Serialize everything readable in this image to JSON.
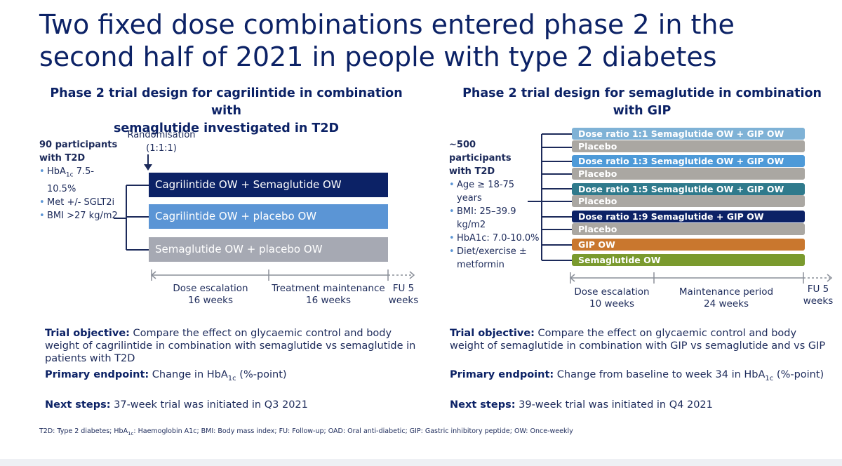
{
  "title": "Two fixed dose combinations entered phase 2 in the second half of 2021 in people with type 2 diabetes",
  "left": {
    "heading_line1": "Phase 2 trial design for cagrilintide in combination with",
    "heading_line2": "semaglutide investigated in T2D",
    "participants_line1": "90 participants",
    "participants_line2": "with T2D",
    "criteria": {
      "hba1c_prefix": "HbA",
      "hba1c_sub": "1c",
      "hba1c_value": " 7.5-",
      "hba1c_value2": "10.5%",
      "met": "Met +/- SGLT2i",
      "bmi": "BMI >27 kg/m2"
    },
    "randomisation_line1": "Randomisation",
    "randomisation_line2": "(1:1:1)",
    "arms": [
      {
        "label": "Cagrilintide OW + Semaglutide OW",
        "color": "#0c2266"
      },
      {
        "label": "Cagrilintide OW + placebo OW",
        "color": "#5b95d5"
      },
      {
        "label": "Semaglutide OW + placebo OW",
        "color": "#a6a9b3"
      }
    ],
    "timeline": {
      "dose_line1": "Dose escalation",
      "dose_line2": "16 weeks",
      "maint_line1": "Treatment maintenance",
      "maint_line2": "16 weeks",
      "fu_line1": "FU 5",
      "fu_line2": "weeks"
    },
    "objective_label": "Trial objective:",
    "objective_text": " Compare the effect on glycaemic control and body weight of cagrilintide in combination with semaglutide vs semaglutide in patients with T2D",
    "endpoint_label": "Primary endpoint:",
    "endpoint_text": " Change in HbA",
    "endpoint_sub": "1c",
    "endpoint_text2": " (%-point)",
    "next_label": "Next steps:",
    "next_text": " 37-week trial was initiated in Q3 2021"
  },
  "right": {
    "heading_line1": "Phase 2 trial design for semaglutide in combination",
    "heading_line2": "with GIP",
    "participants_line1": "~500 participants",
    "participants_line2": "with T2D",
    "criteria": {
      "age": "Age ≥ 18-75",
      "age2": "years",
      "bmi": "BMI: 25–39.9",
      "bmi2": "kg/m2",
      "hba1c": "HbA1c: 7.0-10.0%",
      "diet": "Diet/exercise ±",
      "diet2": "metformin"
    },
    "arms": [
      {
        "label": "Dose ratio 1:1 Semaglutide OW + GIP OW",
        "color": "#7fb2d6"
      },
      {
        "label": "Placebo",
        "color": "#aaa7a2"
      },
      {
        "label": "Dose ratio 1:3 Semaglutide OW + GIP OW",
        "color": "#4e9ad8"
      },
      {
        "label": "Placebo",
        "color": "#aaa7a2"
      },
      {
        "label": "Dose ratio 1:5 Semaglutide OW + GIP OW",
        "color": "#2f7a8c"
      },
      {
        "label": "Placebo",
        "color": "#aaa7a2"
      },
      {
        "label": "Dose ratio 1:9 Semaglutide + GIP OW",
        "color": "#0c2266"
      },
      {
        "label": "Placebo",
        "color": "#aaa7a2"
      },
      {
        "label": "GIP OW",
        "color": "#c9772e"
      },
      {
        "label": "Semaglutide OW",
        "color": "#7a9a2e"
      }
    ],
    "timeline": {
      "dose_line1": "Dose escalation",
      "dose_line2": "10 weeks",
      "maint_line1": "Maintenance period",
      "maint_line2": "24 weeks",
      "fu_line1": "FU 5",
      "fu_line2": "weeks"
    },
    "objective_label": "Trial objective:",
    "objective_text": " Compare the effect on glycaemic control and body weight of semaglutide in combination with GIP vs semaglutide and vs GIP",
    "endpoint_label": "Primary endpoint:",
    "endpoint_text": " Change from baseline to week 34 in HbA",
    "endpoint_sub": "1c",
    "endpoint_text2": " (%-point)",
    "next_label": "Next steps:",
    "next_text": " 39-week trial was initiated in Q4 2021"
  },
  "footer": {
    "part1": "T2D: Type 2 diabetes; HbA",
    "sub": "1c",
    "part2": ": Haemoglobin A1c; BMI: Body mass index; FU: Follow-up; OAD: Oral anti-diabetic; GIP: Gastric inhibitory peptide; OW: Once-weekly"
  },
  "colors": {
    "navy": "#0c2266",
    "line": "#1c2a5a",
    "timeline_gray": "#8a8f99"
  }
}
